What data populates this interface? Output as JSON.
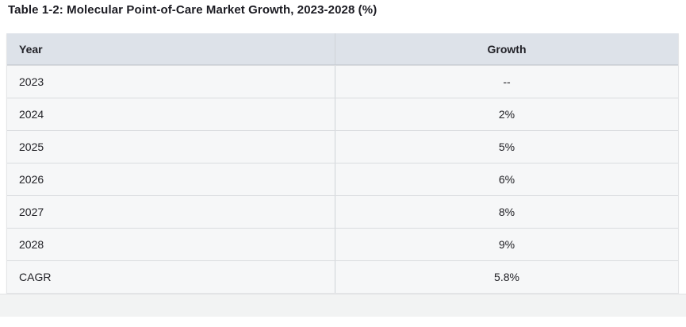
{
  "title": "Table 1-2: Molecular Point-of-Care Market Growth, 2023-2028 (%)",
  "table": {
    "columns": [
      "Year",
      "Growth"
    ],
    "rows": [
      {
        "year": "2023",
        "growth": "--"
      },
      {
        "year": "2024",
        "growth": "2%"
      },
      {
        "year": "2025",
        "growth": "5%"
      },
      {
        "year": "2026",
        "growth": "6%"
      },
      {
        "year": "2027",
        "growth": "8%"
      },
      {
        "year": "2028",
        "growth": "9%"
      },
      {
        "year": "CAGR",
        "growth": "5.8%"
      }
    ]
  },
  "chart_data": {
    "type": "table",
    "title": "Table 1-2: Molecular Point-of-Care Market Growth, 2023-2028 (%)",
    "columns": [
      "Year",
      "Growth"
    ],
    "rows": [
      [
        "2023",
        "--"
      ],
      [
        "2024",
        "2%"
      ],
      [
        "2025",
        "5%"
      ],
      [
        "2026",
        "6%"
      ],
      [
        "2027",
        "8%"
      ],
      [
        "2028",
        "9%"
      ],
      [
        "CAGR",
        "5.8%"
      ]
    ],
    "growth_percent_by_year": {
      "2023": null,
      "2024": 2,
      "2025": 5,
      "2026": 6,
      "2027": 8,
      "2028": 9
    },
    "cagr_percent": 5.8
  },
  "colors": {
    "header_background": "#dde2e9",
    "row_background": "#f6f7f8",
    "row_separator": "#dadcdf",
    "column_divider": "#cfd3d8",
    "title_text": "#1b1b22",
    "body_text": "#212126",
    "footer_strip": "#f2f3f3"
  }
}
